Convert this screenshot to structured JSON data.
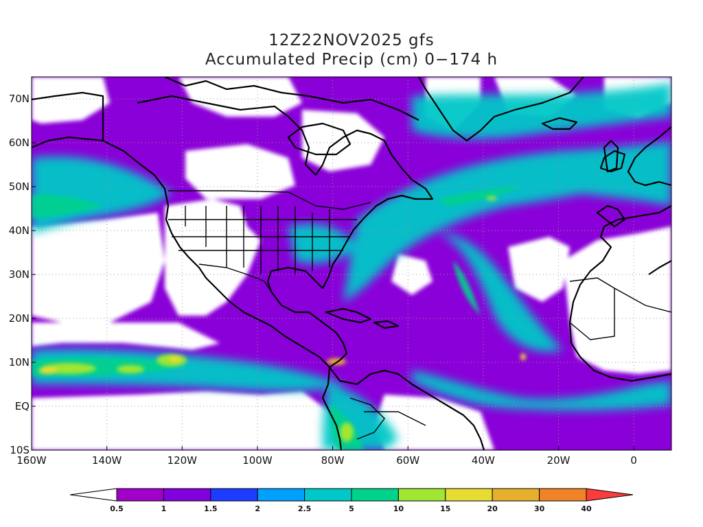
{
  "title": {
    "line1": "12Z22NOV2025 gfs",
    "line2": "Accumulated Precip (cm) 0−174 h"
  },
  "axes": {
    "lat_labels": [
      "70N",
      "60N",
      "50N",
      "40N",
      "30N",
      "20N",
      "10N",
      "EQ",
      "10S"
    ],
    "lon_labels": [
      "160W",
      "140W",
      "120W",
      "100W",
      "80W",
      "60W",
      "40W",
      "20W",
      "0"
    ],
    "lat_range": [
      -10,
      75
    ],
    "lon_range": [
      -160,
      10
    ],
    "grid": "dotted"
  },
  "colorbar": {
    "labels": [
      "0.5",
      "1",
      "1.5",
      "2",
      "2.5",
      "5",
      "10",
      "15",
      "20",
      "30",
      "40"
    ],
    "colors": [
      "#ffffff",
      "#a000c8",
      "#8200dc",
      "#1e3cff",
      "#00a0ff",
      "#00c8c8",
      "#00d28c",
      "#a0e632",
      "#e6dc32",
      "#e6af2d",
      "#f08228",
      "#fa3c3c"
    ]
  },
  "field": {
    "levels_cm": [
      0.5,
      1,
      1.5,
      2,
      2.5,
      5,
      10,
      15,
      20,
      30,
      40
    ]
  }
}
